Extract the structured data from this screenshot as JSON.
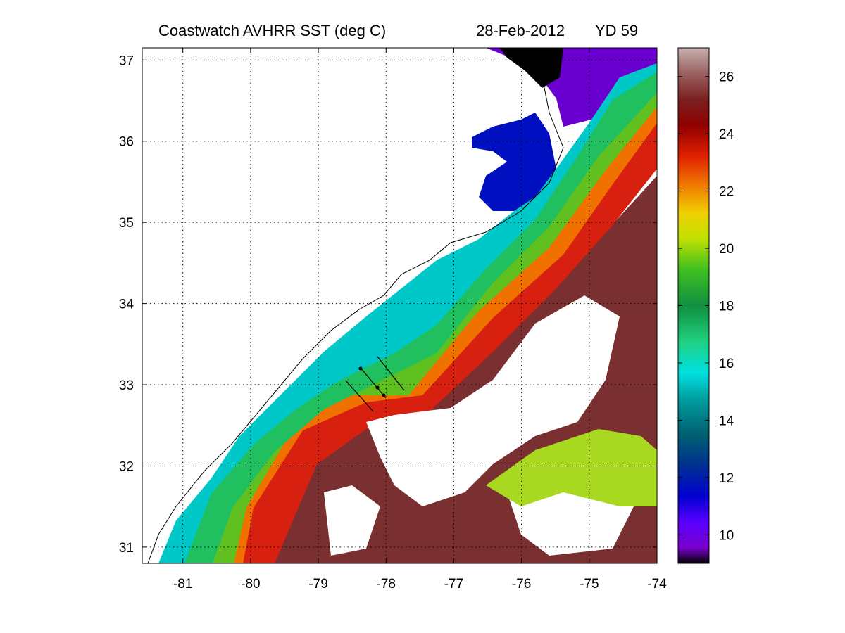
{
  "title": {
    "product": "Coastwatch   AVHRR   SST  (deg C)",
    "date": "28-Feb-2012",
    "yearday": "YD 59"
  },
  "map": {
    "lon_range": [
      -81.6,
      -74.0
    ],
    "lat_range": [
      30.8,
      37.15
    ],
    "lon_ticks": [
      -81,
      -80,
      -79,
      -78,
      -77,
      -76,
      -75,
      -74
    ],
    "lat_ticks": [
      31,
      32,
      33,
      34,
      35,
      36,
      37
    ],
    "grid": true,
    "grid_style": "dotted",
    "land_color": "#ffffff",
    "coastline_color": "#000000"
  },
  "colorbar": {
    "range": [
      9,
      27
    ],
    "ticks": [
      10,
      12,
      14,
      16,
      18,
      20,
      22,
      24,
      26
    ],
    "colors": [
      "#000000",
      "#7a00cc",
      "#5a00ff",
      "#0000d0",
      "#0030b0",
      "#006080",
      "#00a0a0",
      "#00e0e0",
      "#20d080",
      "#10a040",
      "#40c020",
      "#a0e000",
      "#f0e000",
      "#f0a000",
      "#f06000",
      "#e02000",
      "#b01010",
      "#800000",
      "#7a2020",
      "#8a4a4a",
      "#a07878",
      "#c0a8a8"
    ]
  }
}
